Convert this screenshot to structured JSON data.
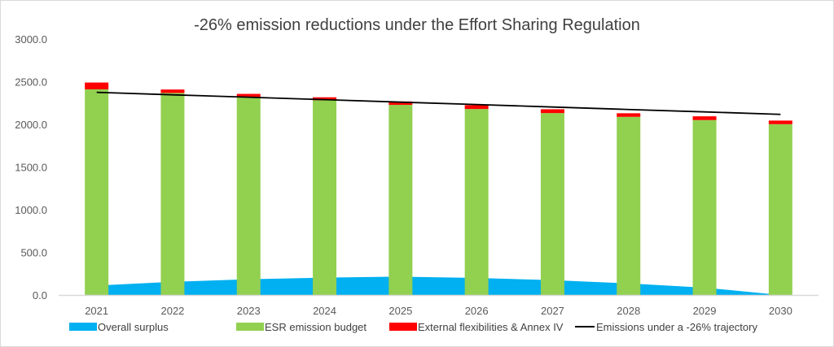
{
  "chart_data": {
    "type": "bar",
    "title": "-26% emission reductions under the Effort Sharing Regulation",
    "xlabel": "",
    "ylabel": "",
    "ylim": [
      0,
      3000
    ],
    "yticks": [
      "0.0",
      "500.0",
      "1000.0",
      "1500.0",
      "2000.0",
      "2500.0",
      "3000.0"
    ],
    "grid": false,
    "legend_position": "bottom",
    "categories": [
      "2021",
      "2022",
      "2023",
      "2024",
      "2025",
      "2026",
      "2027",
      "2028",
      "2029",
      "2030"
    ],
    "series": [
      {
        "name": "Overall surplus",
        "kind": "area",
        "color": "#00b0f0",
        "values": [
          110,
          155,
          184,
          203,
          215,
          200,
          174,
          136,
          86,
          0
        ]
      },
      {
        "name": "ESR emission budget",
        "kind": "stacked-bar",
        "color": "#92d050",
        "values": [
          2410,
          2368,
          2314,
          2282,
          2228,
          2180,
          2132,
          2088,
          2050,
          2002
        ]
      },
      {
        "name": "External flexibilities & Annex IV",
        "kind": "stacked-bar",
        "color": "#ff0000",
        "values": [
          80,
          40,
          43,
          35,
          40,
          45,
          45,
          42,
          44,
          42
        ]
      },
      {
        "name": "Emissions under a -26% trajectory",
        "kind": "line",
        "color": "#000000",
        "values": [
          2375,
          2346,
          2318,
          2289,
          2260,
          2232,
          2203,
          2174,
          2146,
          2117
        ]
      }
    ]
  }
}
